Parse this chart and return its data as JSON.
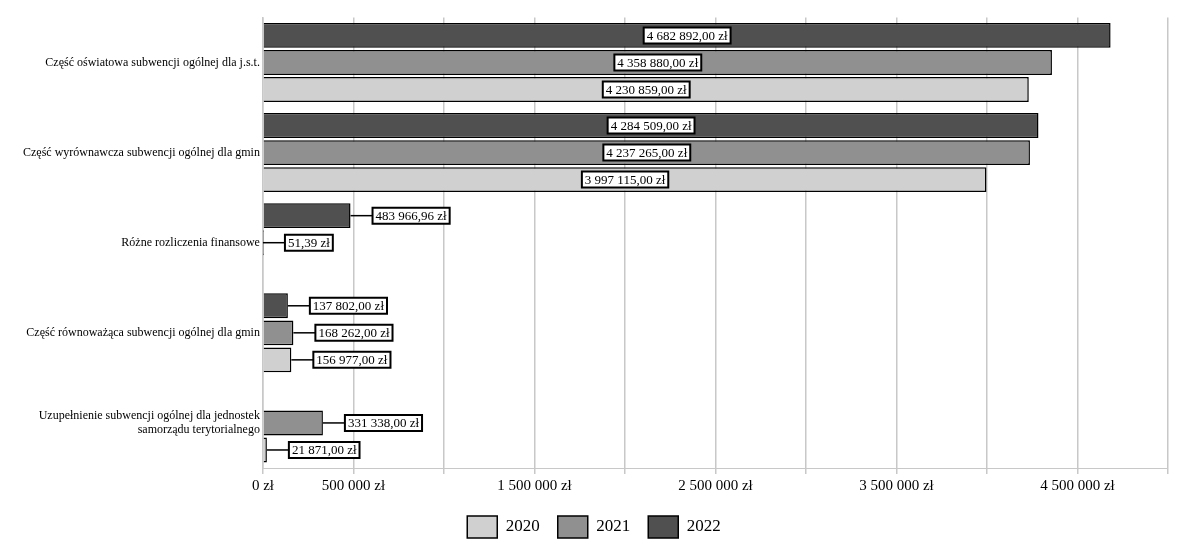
{
  "chart_data": {
    "type": "bar",
    "orientation": "horizontal",
    "categories": [
      "Część oświatowa subwencji ogólnej dla j.s.t.",
      "Część wyrównawcza subwencji ogólnej dla gmin",
      "Różne rozliczenia finansowe",
      "Część równoważąca subwencji ogólnej dla gmin",
      "Uzupełnienie subwencji ogólnej dla jednostek samorządu terytorialnego"
    ],
    "series": [
      {
        "name": "2020",
        "color": "#d0d0d0",
        "values": [
          4230859,
          3997115,
          null,
          156977,
          21871
        ],
        "value_labels": [
          "4 230 859,00 zł",
          "3 997 115,00 zł",
          null,
          "156 977,00 zł",
          "21 871,00 zł"
        ]
      },
      {
        "name": "2021",
        "color": "#909090",
        "values": [
          4358880,
          4237265,
          51.39,
          168262,
          331338
        ],
        "value_labels": [
          "4 358 880,00 zł",
          "4 237 265,00 zł",
          "51,39 zł",
          "168 262,00 zł",
          "331 338,00 zł"
        ]
      },
      {
        "name": "2022",
        "color": "#505050",
        "values": [
          4682892,
          4284509,
          483966.96,
          137802,
          null
        ],
        "value_labels": [
          "4 682 892,00 zł",
          "4 284 509,00 zł",
          "483 966,96 zł",
          "137 802,00 zł",
          null
        ]
      }
    ],
    "xlim": [
      0,
      5000000
    ],
    "xticks": [
      {
        "value": 0,
        "label": "0 zł"
      },
      {
        "value": 500000,
        "label": "500 000 zł"
      },
      {
        "value": 1000000,
        "label": null
      },
      {
        "value": 1500000,
        "label": "1 500 000 zł"
      },
      {
        "value": 2000000,
        "label": null
      },
      {
        "value": 2500000,
        "label": "2 500 000 zł"
      },
      {
        "value": 3000000,
        "label": null
      },
      {
        "value": 3500000,
        "label": "3 500 000 zł"
      },
      {
        "value": 4000000,
        "label": null
      },
      {
        "value": 4500000,
        "label": "4 500 000 zł"
      },
      {
        "value": 5000000,
        "label": null
      }
    ],
    "grid": "x",
    "legend": "bottom"
  }
}
